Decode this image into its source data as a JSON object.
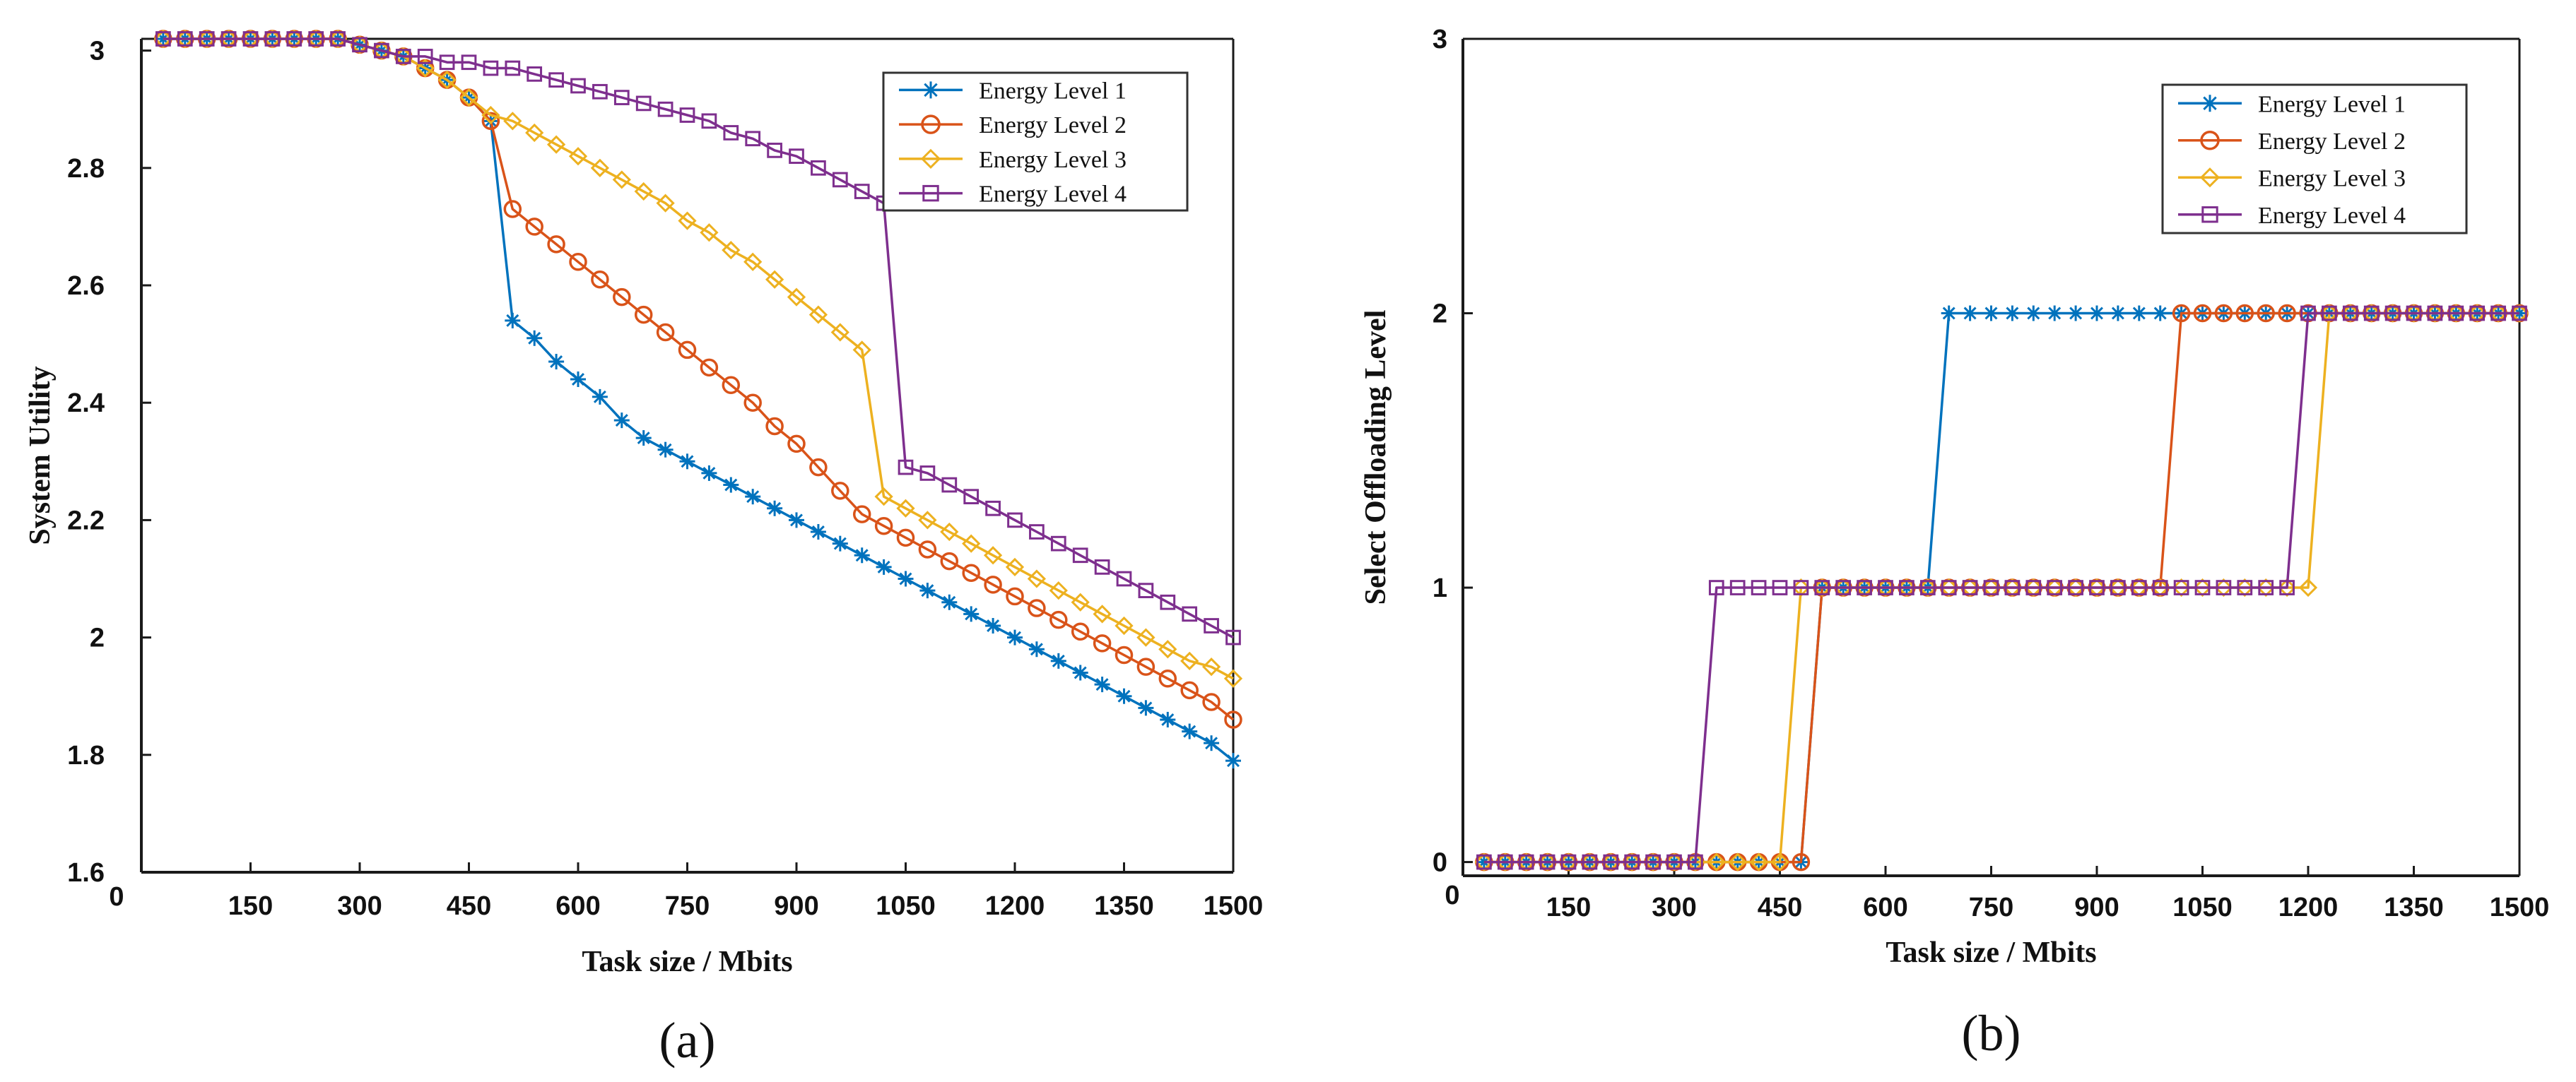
{
  "chart_data": [
    {
      "type": "line",
      "panel_label": "(a)",
      "xlabel": "Task size / Mbits",
      "ylabel": "System Utility",
      "xlim": [
        0,
        1500
      ],
      "ylim": [
        1.6,
        3.02
      ],
      "origin_label": "0",
      "x_ticks": [
        150,
        300,
        450,
        600,
        750,
        900,
        1050,
        1200,
        1350,
        1500
      ],
      "y_ticks": [
        1.6,
        1.8,
        2,
        2.2,
        2.4,
        2.6,
        2.8,
        3
      ],
      "y_tick_labels": [
        "1.6",
        "1.8",
        "2",
        "2.2",
        "2.4",
        "2.6",
        "2.8",
        "3"
      ],
      "legend": [
        "Energy Level 1",
        "Energy Level 2",
        "Energy Level 3",
        "Energy Level 4"
      ],
      "legend_position": "top-right",
      "grid": false,
      "series": [
        {
          "name": "Energy Level 1",
          "color": "#0072BD",
          "marker": "star",
          "x": [
            30,
            60,
            90,
            120,
            150,
            180,
            210,
            240,
            270,
            300,
            330,
            360,
            390,
            420,
            450,
            480,
            510,
            540,
            570,
            600,
            630,
            660,
            690,
            720,
            750,
            780,
            810,
            840,
            870,
            900,
            930,
            960,
            990,
            1020,
            1050,
            1080,
            1110,
            1140,
            1170,
            1200,
            1230,
            1260,
            1290,
            1320,
            1350,
            1380,
            1410,
            1440,
            1470,
            1500
          ],
          "y": [
            3.02,
            3.02,
            3.02,
            3.02,
            3.02,
            3.02,
            3.02,
            3.02,
            3.02,
            3.01,
            3.0,
            2.99,
            2.97,
            2.95,
            2.92,
            2.88,
            2.54,
            2.51,
            2.47,
            2.44,
            2.41,
            2.37,
            2.34,
            2.32,
            2.3,
            2.28,
            2.26,
            2.24,
            2.22,
            2.2,
            2.18,
            2.16,
            2.14,
            2.12,
            2.1,
            2.08,
            2.06,
            2.04,
            2.02,
            2.0,
            1.98,
            1.96,
            1.94,
            1.92,
            1.9,
            1.88,
            1.86,
            1.84,
            1.82,
            1.79
          ]
        },
        {
          "name": "Energy Level 2",
          "color": "#D95319",
          "marker": "circle",
          "x": [
            30,
            60,
            90,
            120,
            150,
            180,
            210,
            240,
            270,
            300,
            330,
            360,
            390,
            420,
            450,
            480,
            510,
            540,
            570,
            600,
            630,
            660,
            690,
            720,
            750,
            780,
            810,
            840,
            870,
            900,
            930,
            960,
            990,
            1020,
            1050,
            1080,
            1110,
            1140,
            1170,
            1200,
            1230,
            1260,
            1290,
            1320,
            1350,
            1380,
            1410,
            1440,
            1470,
            1500
          ],
          "y": [
            3.02,
            3.02,
            3.02,
            3.02,
            3.02,
            3.02,
            3.02,
            3.02,
            3.02,
            3.01,
            3.0,
            2.99,
            2.97,
            2.95,
            2.92,
            2.88,
            2.73,
            2.7,
            2.67,
            2.64,
            2.61,
            2.58,
            2.55,
            2.52,
            2.49,
            2.46,
            2.43,
            2.4,
            2.36,
            2.33,
            2.29,
            2.25,
            2.21,
            2.19,
            2.17,
            2.15,
            2.13,
            2.11,
            2.09,
            2.07,
            2.05,
            2.03,
            2.01,
            1.99,
            1.97,
            1.95,
            1.93,
            1.91,
            1.89,
            1.86
          ]
        },
        {
          "name": "Energy Level 3",
          "color": "#EDB120",
          "marker": "diamond",
          "x": [
            30,
            60,
            90,
            120,
            150,
            180,
            210,
            240,
            270,
            300,
            330,
            360,
            390,
            420,
            450,
            480,
            510,
            540,
            570,
            600,
            630,
            660,
            690,
            720,
            750,
            780,
            810,
            840,
            870,
            900,
            930,
            960,
            990,
            1020,
            1050,
            1080,
            1110,
            1140,
            1170,
            1200,
            1230,
            1260,
            1290,
            1320,
            1350,
            1380,
            1410,
            1440,
            1470,
            1500
          ],
          "y": [
            3.02,
            3.02,
            3.02,
            3.02,
            3.02,
            3.02,
            3.02,
            3.02,
            3.02,
            3.01,
            3.0,
            2.99,
            2.97,
            2.95,
            2.92,
            2.89,
            2.88,
            2.86,
            2.84,
            2.82,
            2.8,
            2.78,
            2.76,
            2.74,
            2.71,
            2.69,
            2.66,
            2.64,
            2.61,
            2.58,
            2.55,
            2.52,
            2.49,
            2.24,
            2.22,
            2.2,
            2.18,
            2.16,
            2.14,
            2.12,
            2.1,
            2.08,
            2.06,
            2.04,
            2.02,
            2.0,
            1.98,
            1.96,
            1.95,
            1.93
          ]
        },
        {
          "name": "Energy Level 4",
          "color": "#7E2F8E",
          "marker": "square",
          "x": [
            30,
            60,
            90,
            120,
            150,
            180,
            210,
            240,
            270,
            300,
            330,
            360,
            390,
            420,
            450,
            480,
            510,
            540,
            570,
            600,
            630,
            660,
            690,
            720,
            750,
            780,
            810,
            840,
            870,
            900,
            930,
            960,
            990,
            1020,
            1050,
            1080,
            1110,
            1140,
            1170,
            1200,
            1230,
            1260,
            1290,
            1320,
            1350,
            1380,
            1410,
            1440,
            1470,
            1500
          ],
          "y": [
            3.02,
            3.02,
            3.02,
            3.02,
            3.02,
            3.02,
            3.02,
            3.02,
            3.02,
            3.01,
            3.0,
            2.99,
            2.99,
            2.98,
            2.98,
            2.97,
            2.97,
            2.96,
            2.95,
            2.94,
            2.93,
            2.92,
            2.91,
            2.9,
            2.89,
            2.88,
            2.86,
            2.85,
            2.83,
            2.82,
            2.8,
            2.78,
            2.76,
            2.74,
            2.29,
            2.28,
            2.26,
            2.24,
            2.22,
            2.2,
            2.18,
            2.16,
            2.14,
            2.12,
            2.1,
            2.08,
            2.06,
            2.04,
            2.02,
            2.0
          ]
        }
      ]
    },
    {
      "type": "line",
      "panel_label": "(b)",
      "xlabel": "Task size / Mbits",
      "ylabel": "Select Offloading Level",
      "xlim": [
        0,
        1500
      ],
      "ylim": [
        -0.05,
        3
      ],
      "origin_label": "0",
      "x_ticks": [
        150,
        300,
        450,
        600,
        750,
        900,
        1050,
        1200,
        1350,
        1500
      ],
      "y_ticks": [
        0,
        1,
        2,
        3
      ],
      "y_tick_labels": [
        "0",
        "1",
        "2",
        "3"
      ],
      "legend": [
        "Energy Level 1",
        "Energy Level 2",
        "Energy Level 3",
        "Energy Level 4"
      ],
      "legend_position": "top-right",
      "grid": false,
      "series": [
        {
          "name": "Energy Level 1",
          "color": "#0072BD",
          "marker": "star",
          "x": [
            30,
            60,
            90,
            120,
            150,
            180,
            210,
            240,
            270,
            300,
            330,
            360,
            390,
            420,
            450,
            480,
            510,
            540,
            570,
            600,
            630,
            660,
            690,
            720,
            750,
            780,
            810,
            840,
            870,
            900,
            930,
            960,
            990,
            1020,
            1050,
            1080,
            1110,
            1140,
            1170,
            1200,
            1230,
            1260,
            1290,
            1320,
            1350,
            1380,
            1410,
            1440,
            1470,
            1500
          ],
          "y": [
            0,
            0,
            0,
            0,
            0,
            0,
            0,
            0,
            0,
            0,
            0,
            0,
            0,
            0,
            0,
            0,
            1,
            1,
            1,
            1,
            1,
            1,
            2,
            2,
            2,
            2,
            2,
            2,
            2,
            2,
            2,
            2,
            2,
            2,
            2,
            2,
            2,
            2,
            2,
            2,
            2,
            2,
            2,
            2,
            2,
            2,
            2,
            2,
            2,
            2
          ]
        },
        {
          "name": "Energy Level 2",
          "color": "#D95319",
          "marker": "circle",
          "x": [
            30,
            60,
            90,
            120,
            150,
            180,
            210,
            240,
            270,
            300,
            330,
            360,
            390,
            420,
            450,
            480,
            510,
            540,
            570,
            600,
            630,
            660,
            690,
            720,
            750,
            780,
            810,
            840,
            870,
            900,
            930,
            960,
            990,
            1020,
            1050,
            1080,
            1110,
            1140,
            1170,
            1200,
            1230,
            1260,
            1290,
            1320,
            1350,
            1380,
            1410,
            1440,
            1470,
            1500
          ],
          "y": [
            0,
            0,
            0,
            0,
            0,
            0,
            0,
            0,
            0,
            0,
            0,
            0,
            0,
            0,
            0,
            0,
            1,
            1,
            1,
            1,
            1,
            1,
            1,
            1,
            1,
            1,
            1,
            1,
            1,
            1,
            1,
            1,
            1,
            2,
            2,
            2,
            2,
            2,
            2,
            2,
            2,
            2,
            2,
            2,
            2,
            2,
            2,
            2,
            2,
            2
          ]
        },
        {
          "name": "Energy Level 3",
          "color": "#EDB120",
          "marker": "diamond",
          "x": [
            30,
            60,
            90,
            120,
            150,
            180,
            210,
            240,
            270,
            300,
            330,
            360,
            390,
            420,
            450,
            480,
            510,
            540,
            570,
            600,
            630,
            660,
            690,
            720,
            750,
            780,
            810,
            840,
            870,
            900,
            930,
            960,
            990,
            1020,
            1050,
            1080,
            1110,
            1140,
            1170,
            1200,
            1230,
            1260,
            1290,
            1320,
            1350,
            1380,
            1410,
            1440,
            1470,
            1500
          ],
          "y": [
            0,
            0,
            0,
            0,
            0,
            0,
            0,
            0,
            0,
            0,
            0,
            0,
            0,
            0,
            0,
            1,
            1,
            1,
            1,
            1,
            1,
            1,
            1,
            1,
            1,
            1,
            1,
            1,
            1,
            1,
            1,
            1,
            1,
            1,
            1,
            1,
            1,
            1,
            1,
            1,
            2,
            2,
            2,
            2,
            2,
            2,
            2,
            2,
            2,
            2
          ]
        },
        {
          "name": "Energy Level 4",
          "color": "#7E2F8E",
          "marker": "square",
          "x": [
            30,
            60,
            90,
            120,
            150,
            180,
            210,
            240,
            270,
            300,
            330,
            360,
            390,
            420,
            450,
            480,
            510,
            540,
            570,
            600,
            630,
            660,
            690,
            720,
            750,
            780,
            810,
            840,
            870,
            900,
            930,
            960,
            990,
            1020,
            1050,
            1080,
            1110,
            1140,
            1170,
            1200,
            1230,
            1260,
            1290,
            1320,
            1350,
            1380,
            1410,
            1440,
            1470,
            1500
          ],
          "y": [
            0,
            0,
            0,
            0,
            0,
            0,
            0,
            0,
            0,
            0,
            0,
            1,
            1,
            1,
            1,
            1,
            1,
            1,
            1,
            1,
            1,
            1,
            1,
            1,
            1,
            1,
            1,
            1,
            1,
            1,
            1,
            1,
            1,
            1,
            1,
            1,
            1,
            1,
            1,
            2,
            2,
            2,
            2,
            2,
            2,
            2,
            2,
            2,
            2,
            2
          ]
        }
      ]
    }
  ]
}
